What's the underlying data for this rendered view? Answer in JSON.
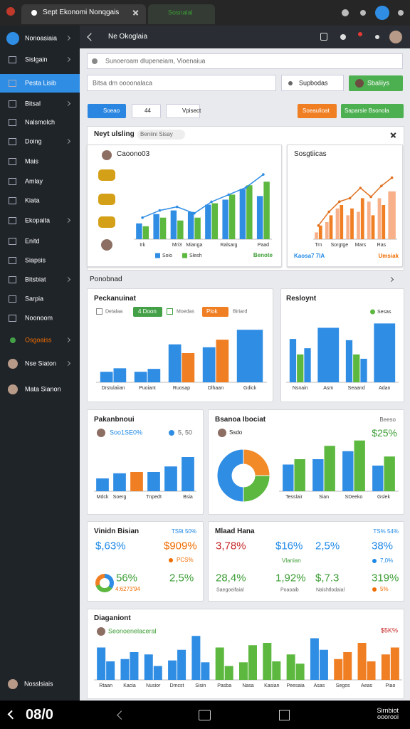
{
  "browser": {
    "tabs": [
      "Sept Ekonomi Nonqgais",
      "Sosnalal"
    ]
  },
  "sidebar": {
    "items": [
      "Nonoasiaia",
      "Sislgain",
      "Pesta Lisib",
      "Bitsal",
      "Nalsmolch",
      "Doing",
      "Mais",
      "Amlay",
      "Kiata",
      "Ekopaita",
      "Enitd",
      "Siapsis",
      "Bitsbiat",
      "Sarpia",
      "Noonoom",
      "Osgoaiss",
      "Nse Siaton",
      "Mata Sianon"
    ],
    "footer": "Nosslsiais"
  },
  "header": {
    "title": "Ne Okoglaia"
  },
  "search": {
    "placeholder": "Sunoeroam dlupeneiam, Vioenaiua"
  },
  "filters": {
    "input": "Bitsa dm oooonalaca",
    "search": "Supbodas",
    "button": "Sbaliiys"
  },
  "toolbar": {
    "buttons": [
      "Soeao",
      "44",
      "Vpisect"
    ],
    "actions": [
      "Soeaulioat",
      "Saparsie Bsonola"
    ]
  },
  "panel": {
    "title": "Neyt ulsling",
    "chip": "Beniini Sisay"
  },
  "section": {
    "title": "Ponobnad"
  },
  "kpis": [
    {
      "title": "Vinidn Bisian",
      "badge": "TS9t 50%",
      "values": [
        "$,63%",
        "$909%",
        "56%",
        "2,5%"
      ],
      "note": "PCS%",
      "sub": "4:6273'94"
    },
    {
      "title": "Mlaad Hana",
      "badge": "TS% 54%",
      "values": [
        "3,78%",
        "$16%",
        "2,5%",
        "38%",
        "28,4%",
        "1,92%",
        "$,7.3",
        "319%"
      ],
      "notes": [
        "Vlanian",
        "7,0%",
        "5%"
      ],
      "captions": [
        "Saegoeifaial",
        "Poaoaib",
        "Nalchtlodaial"
      ]
    }
  ],
  "chart_data": [
    {
      "type": "bar",
      "title": "Caoono03",
      "categories": [
        "Irk",
        null,
        "Mri3",
        "Mianga",
        null,
        "Ralsarg",
        null,
        "Paad"
      ],
      "ylim": [
        0,
        100
      ],
      "series": [
        {
          "name": "Soio",
          "color": "#2f8de4",
          "values": [
            22,
            35,
            40,
            38,
            48,
            55,
            70,
            60
          ]
        },
        {
          "name": "Slesh",
          "color": "#5cb83f",
          "values": [
            18,
            30,
            26,
            30,
            50,
            62,
            75,
            80
          ]
        },
        {
          "type": "line",
          "color": "#2f8de4",
          "values": [
            30,
            40,
            45,
            36,
            52,
            62,
            72,
            90
          ]
        }
      ],
      "note": "Benote"
    },
    {
      "type": "bar",
      "title": "Sosgtiicas",
      "categories": [
        "Trn",
        null,
        "Sorgtge",
        null,
        "Mars",
        null,
        "Ras",
        null
      ],
      "ylim": [
        0,
        100
      ],
      "series": [
        {
          "color": "#f7b08a",
          "values": [
            10,
            25,
            45,
            35,
            40,
            55,
            60,
            70
          ]
        },
        {
          "color": "#f07f24",
          "values": [
            20,
            35,
            50,
            45,
            60,
            35,
            50,
            null
          ]
        },
        {
          "type": "line",
          "color": "#e07020",
          "values": [
            20,
            40,
            55,
            60,
            75,
            62,
            78,
            90
          ]
        }
      ],
      "notes": [
        "Kaosa7 7lA",
        "Umsiak"
      ]
    },
    {
      "type": "bar",
      "title": "Peckanuinat",
      "filters": [
        "Detalaa",
        "4 Doon",
        "Moedas",
        "Plok",
        "Biriard"
      ],
      "categories": [
        "Drstulaiian",
        "Puoiant",
        "Ruosap",
        "Dlhaan",
        "Gdick"
      ],
      "ylim": [
        0,
        100
      ],
      "series": [
        {
          "color": "#2f8de4",
          "values": [
            18,
            18,
            65,
            60,
            90
          ]
        },
        {
          "color": "#2f8de4",
          "values": [
            24,
            23,
            null,
            null,
            null
          ]
        },
        {
          "color": "#f07f24",
          "values": [
            null,
            null,
            50,
            73,
            null
          ]
        }
      ]
    },
    {
      "type": "bar",
      "title": "Resloynt",
      "categories": [
        "Nsnain",
        "Asm",
        "Seaand",
        "Adan"
      ],
      "ylim": [
        0,
        100
      ],
      "series": [
        {
          "color": "#2f8de4",
          "values": [
            70,
            88,
            68,
            95
          ]
        },
        {
          "name": "Sesas",
          "color": "#5cb83f",
          "values": [
            45,
            null,
            45,
            null
          ]
        },
        {
          "color": "#2f8de4",
          "values": [
            55,
            null,
            38,
            null
          ]
        }
      ]
    },
    {
      "type": "bar",
      "title": "Pakanbnoui",
      "notes": [
        "Soo1SE0%",
        "5, 50"
      ],
      "categories": [
        "Mdck",
        "Soerg",
        null,
        "Tnpedt",
        null,
        "Bsia"
      ],
      "ylim": [
        0,
        100
      ],
      "series": [
        {
          "color": "#2f8de4",
          "values": [
            30,
            42,
            null,
            45,
            58,
            80
          ]
        },
        {
          "color": "#f07f24",
          "values": [
            null,
            null,
            45,
            null,
            null,
            null
          ]
        }
      ]
    },
    {
      "type": "pie",
      "title": "Bsanoa Ibociat",
      "notes": [
        "Ssdo",
        "Beeso",
        "$25%"
      ],
      "values": [
        25,
        25,
        50
      ],
      "colors": [
        "#f28b27",
        "#5cb83f",
        "#2f8de4"
      ],
      "donut": true
    },
    {
      "type": "bar",
      "categories": [
        "Tesslair",
        "Sian",
        "SDeeko",
        "Gslek"
      ],
      "ylim": [
        0,
        100
      ],
      "series": [
        {
          "color": "#2f8de4",
          "values": [
            50,
            60,
            75,
            48
          ]
        },
        {
          "color": "#5cb83f",
          "values": [
            60,
            85,
            95,
            65
          ]
        }
      ]
    },
    {
      "type": "bar",
      "title": "Diaganiont",
      "notes": [
        "Seonoenelaceral",
        "$5K%"
      ],
      "categories": [
        "Rtaan",
        "Kacia",
        "Nusior",
        "Dmcst",
        "Sisin",
        "Pasba",
        "Nasa",
        "Kasian",
        "Peesaia",
        "Asas",
        "Segos",
        "Aeas",
        "Piao"
      ],
      "ylim": [
        0,
        100
      ],
      "series": [
        {
          "values": [
            70,
            45,
            55,
            42,
            95,
            70,
            38,
            80,
            55,
            90,
            45,
            80,
            55
          ],
          "colors": [
            "#2f8de4",
            "#2f8de4",
            "#2f8de4",
            "#2f8de4",
            "#2f8de4",
            "#5cb83f",
            "#5cb83f",
            "#5cb83f",
            "#5cb83f",
            "#2f8de4",
            "#f07f24",
            "#f07f24",
            "#f07f24"
          ]
        },
        {
          "values": [
            40,
            60,
            30,
            65,
            38,
            30,
            75,
            40,
            35,
            65,
            60,
            40,
            70
          ],
          "colors": [
            "#2f8de4",
            "#2f8de4",
            "#2f8de4",
            "#2f8de4",
            "#2f8de4",
            "#5cb83f",
            "#5cb83f",
            "#5cb83f",
            "#5cb83f",
            "#2f8de4",
            "#f07f24",
            "#f07f24",
            "#f07f24"
          ]
        }
      ]
    }
  ],
  "navbar": {
    "time": "08/0",
    "label": "Sirnbiot ooorooi"
  }
}
